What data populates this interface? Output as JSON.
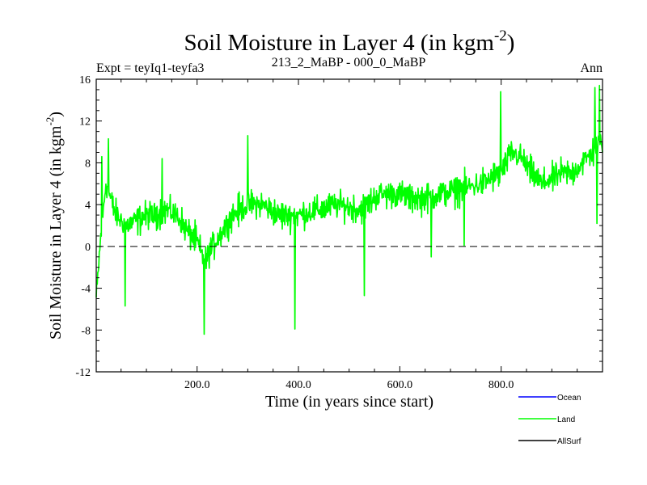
{
  "chart_data": {
    "type": "line",
    "title": "Soil Moisture in Layer 4 (in kgm",
    "title_sup": "-2",
    "title_end": ")",
    "subtitle_left": "Expt = teyIq1-teyfa3",
    "subtitle_center": "213_2_MaBP - 000_0_MaBP",
    "subtitle_right": "Ann",
    "xlabel": "Time (in years since start)",
    "ylabel": "Soil Moisture in Layer 4 (in kgm",
    "ylabel_sup": "-2",
    "ylabel_end": ")",
    "xlim": [
      1,
      1000
    ],
    "ylim": [
      -12,
      16
    ],
    "xticks": [
      200,
      400,
      600,
      800
    ],
    "xtick_labels": [
      "200.0",
      "400.0",
      "600.0",
      "800.0"
    ],
    "yticks": [
      -12,
      -8,
      -4,
      0,
      4,
      8,
      12,
      16
    ],
    "ytick_labels": [
      "-12",
      "-8",
      "-4",
      "0",
      "4",
      "8",
      "12",
      "16"
    ],
    "zero_line": 0,
    "legend": [
      {
        "name": "Ocean",
        "color": "#0000ff"
      },
      {
        "name": "Land",
        "color": "#00ff00"
      },
      {
        "name": "AllSurf",
        "color": "#000000"
      }
    ],
    "series": [
      {
        "name": "Land",
        "color": "#00ff00",
        "anchors": [
          {
            "x": 1,
            "y": -5
          },
          {
            "x": 10,
            "y": 1
          },
          {
            "x": 20,
            "y": 6
          },
          {
            "x": 40,
            "y": 3
          },
          {
            "x": 60,
            "y": 2
          },
          {
            "x": 80,
            "y": 2.5
          },
          {
            "x": 100,
            "y": 3
          },
          {
            "x": 120,
            "y": 3
          },
          {
            "x": 140,
            "y": 3.5
          },
          {
            "x": 160,
            "y": 3
          },
          {
            "x": 180,
            "y": 1.5
          },
          {
            "x": 200,
            "y": 0.5
          },
          {
            "x": 215,
            "y": -1.5
          },
          {
            "x": 230,
            "y": 0
          },
          {
            "x": 250,
            "y": 1.5
          },
          {
            "x": 270,
            "y": 3
          },
          {
            "x": 300,
            "y": 4
          },
          {
            "x": 330,
            "y": 4
          },
          {
            "x": 360,
            "y": 3
          },
          {
            "x": 400,
            "y": 3
          },
          {
            "x": 440,
            "y": 3.5
          },
          {
            "x": 480,
            "y": 4
          },
          {
            "x": 520,
            "y": 3.5
          },
          {
            "x": 560,
            "y": 5
          },
          {
            "x": 600,
            "y": 5
          },
          {
            "x": 640,
            "y": 4.5
          },
          {
            "x": 680,
            "y": 5
          },
          {
            "x": 720,
            "y": 5.5
          },
          {
            "x": 760,
            "y": 6
          },
          {
            "x": 800,
            "y": 7
          },
          {
            "x": 820,
            "y": 9
          },
          {
            "x": 840,
            "y": 8.5
          },
          {
            "x": 860,
            "y": 7
          },
          {
            "x": 880,
            "y": 6
          },
          {
            "x": 900,
            "y": 6.5
          },
          {
            "x": 920,
            "y": 7
          },
          {
            "x": 940,
            "y": 7
          },
          {
            "x": 960,
            "y": 8
          },
          {
            "x": 980,
            "y": 9
          },
          {
            "x": 1000,
            "y": 10
          }
        ],
        "noise_amplitude": 3.5,
        "spikes": [
          {
            "x": 12,
            "y": 8.6
          },
          {
            "x": 25,
            "y": 10.3
          },
          {
            "x": 58,
            "y": -5.7
          },
          {
            "x": 131,
            "y": 8.4
          },
          {
            "x": 214,
            "y": -8.4
          },
          {
            "x": 300,
            "y": 10.6
          },
          {
            "x": 393,
            "y": -7.9
          },
          {
            "x": 530,
            "y": -4.7
          },
          {
            "x": 662,
            "y": -1.0
          },
          {
            "x": 727,
            "y": 0.1
          },
          {
            "x": 799,
            "y": 14.8
          },
          {
            "x": 985,
            "y": 15.2
          },
          {
            "x": 994,
            "y": 15.4
          },
          {
            "x": 989,
            "y": 2.2
          }
        ]
      }
    ]
  }
}
